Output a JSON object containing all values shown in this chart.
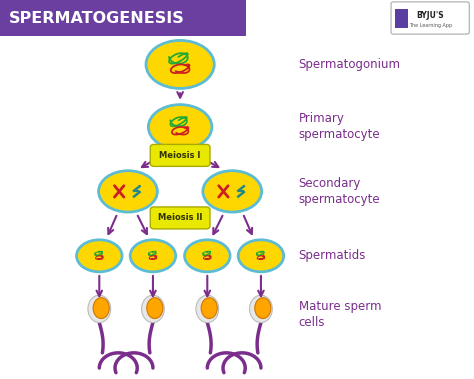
{
  "title": "SPERMATOGENESIS",
  "title_bg": "#6B3FA0",
  "title_color": "#FFFFFF",
  "bg_color": "#FFFFFF",
  "arrow_color": "#7B2D8B",
  "cell_fill": "#FFD700",
  "cell_border": "#5BBCD4",
  "label_color": "#7B2D8B",
  "meiosis1_label": "Meiosis I",
  "meiosis2_label": "Meiosis II",
  "meiosis_fill": "#E8E800",
  "meiosis_border": "#AAAA00",
  "chr_red": "#CC2020",
  "chr_teal": "#228888",
  "squig_green": "#22AA33",
  "squig_red": "#CC2020",
  "sperm_head_fill": "#FFA500",
  "sperm_head_outer": "#DDDDDD",
  "sperm_tail": "#7B2D8B",
  "labels": {
    "spermatogonium": "Spermatogonium",
    "primary": "Primary\nspermatocyte",
    "secondary": "Secondary\nspermatocyte",
    "spermatids": "Spermatids",
    "mature": "Mature sperm\ncells"
  }
}
